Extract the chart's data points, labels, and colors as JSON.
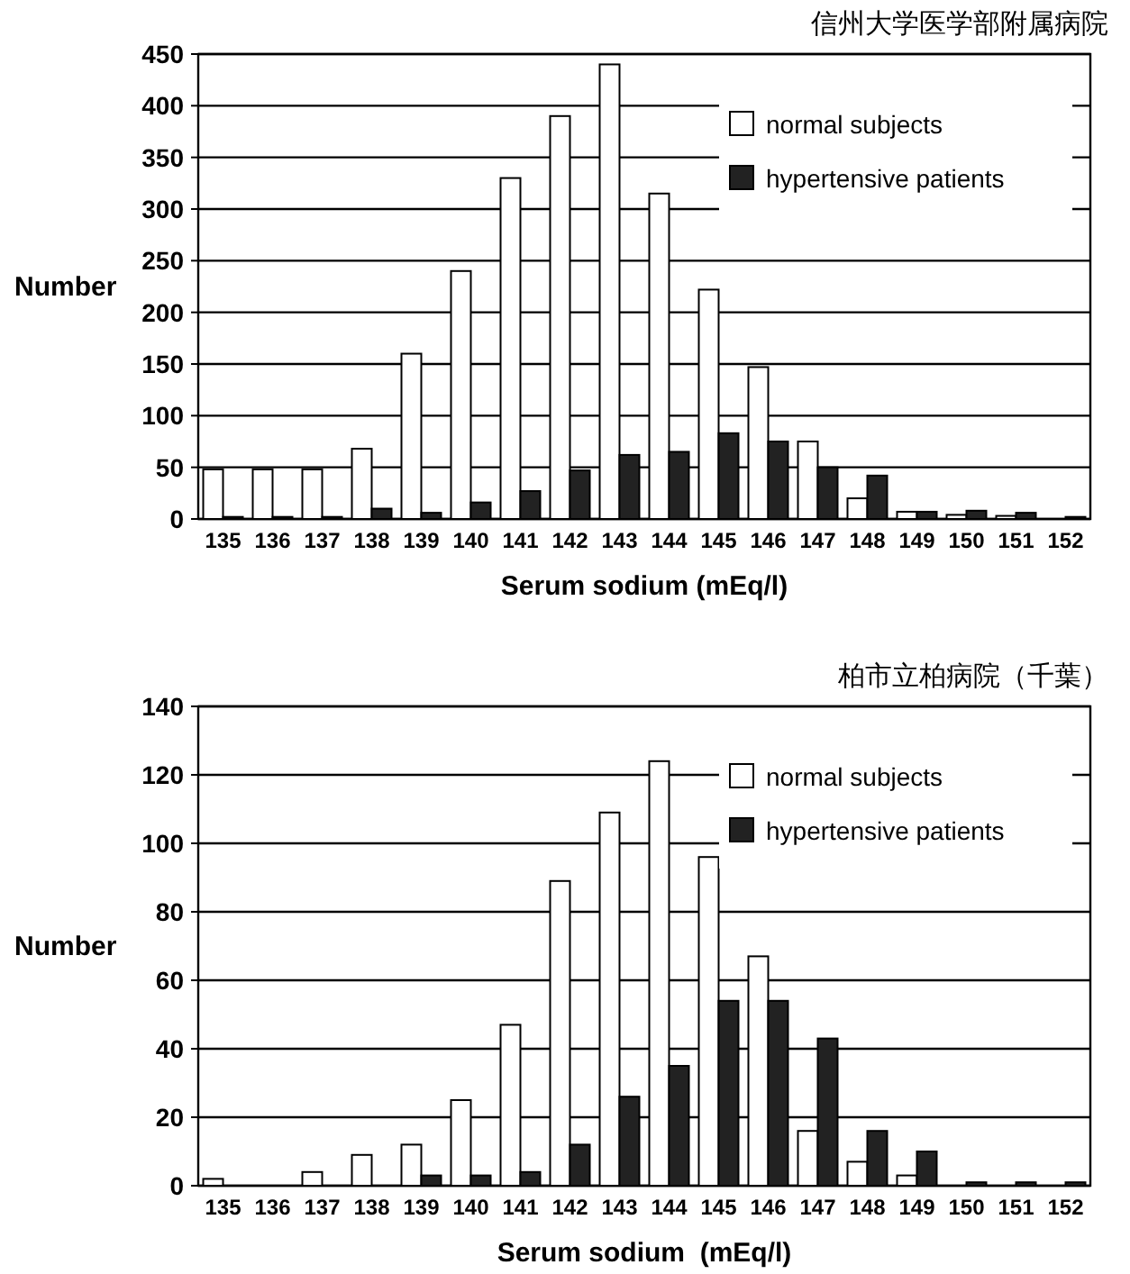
{
  "chart_data": [
    {
      "type": "bar",
      "title": "信州大学医学部附属病院",
      "xlabel": "Serum sodium (mEq/l)",
      "ylabel": "Number",
      "categories": [
        "135",
        "136",
        "137",
        "138",
        "139",
        "140",
        "141",
        "142",
        "143",
        "144",
        "145",
        "146",
        "147",
        "148",
        "149",
        "150",
        "151",
        "152"
      ],
      "series": [
        {
          "name": "normal subjects",
          "color": "#ffffff",
          "values": [
            48,
            48,
            48,
            68,
            160,
            240,
            330,
            390,
            440,
            315,
            222,
            147,
            75,
            20,
            7,
            4,
            3,
            0
          ]
        },
        {
          "name": "hypertensive patients",
          "color": "#222222",
          "values": [
            2,
            2,
            2,
            10,
            6,
            16,
            27,
            47,
            62,
            65,
            83,
            75,
            50,
            42,
            7,
            8,
            6,
            2
          ]
        }
      ],
      "ylim": [
        0,
        450
      ],
      "yticks": [
        0,
        50,
        100,
        150,
        200,
        250,
        300,
        350,
        400,
        450
      ],
      "grid": "y",
      "legend": "top right"
    },
    {
      "type": "bar",
      "title": "柏市立柏病院（千葉）",
      "xlabel": "Serum sodium  (mEq/l)",
      "ylabel": "Number",
      "categories": [
        "135",
        "136",
        "137",
        "138",
        "139",
        "140",
        "141",
        "142",
        "143",
        "144",
        "145",
        "146",
        "147",
        "148",
        "149",
        "150",
        "151",
        "152"
      ],
      "series": [
        {
          "name": "normal subjects",
          "color": "#ffffff",
          "values": [
            2,
            0,
            4,
            9,
            12,
            25,
            47,
            89,
            109,
            124,
            96,
            67,
            16,
            7,
            3,
            0,
            0,
            0
          ]
        },
        {
          "name": "hypertensive patients",
          "color": "#222222",
          "values": [
            0,
            0,
            0,
            0,
            3,
            3,
            4,
            12,
            26,
            35,
            54,
            54,
            43,
            16,
            10,
            1,
            1,
            1
          ]
        }
      ],
      "ylim": [
        0,
        140
      ],
      "yticks": [
        0,
        20,
        40,
        60,
        80,
        100,
        120,
        140
      ],
      "grid": "y",
      "legend": "top right"
    }
  ]
}
